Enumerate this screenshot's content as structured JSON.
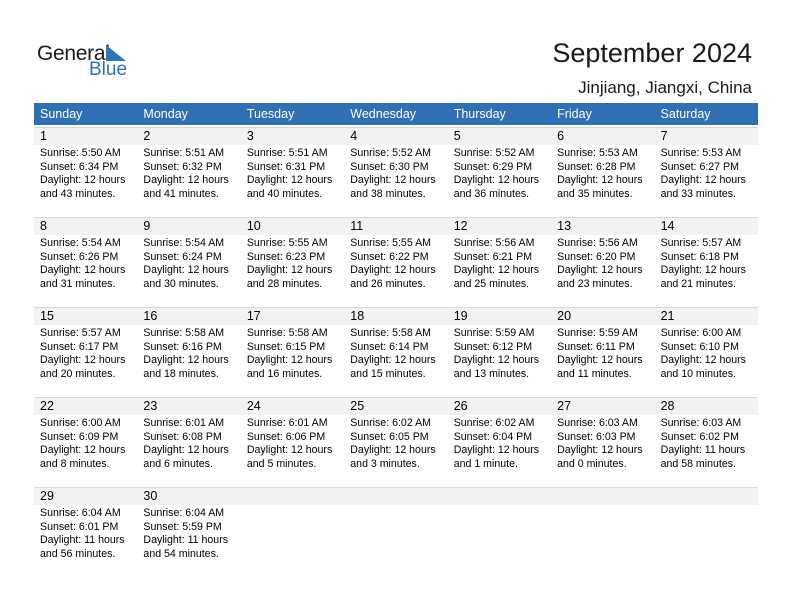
{
  "logo": {
    "text_general": "General",
    "text_blue": "Blue"
  },
  "header": {
    "title": "September 2024",
    "location": "Jinjiang, Jiangxi, China"
  },
  "colors": {
    "header_bg": "#2f6fb3",
    "band_bg": "#f2f2f2",
    "logo_blue": "#2a74b7"
  },
  "weekdays": [
    "Sunday",
    "Monday",
    "Tuesday",
    "Wednesday",
    "Thursday",
    "Friday",
    "Saturday"
  ],
  "weeks": [
    [
      {
        "day": "1",
        "sunrise": "Sunrise: 5:50 AM",
        "sunset": "Sunset: 6:34 PM",
        "daylight1": "Daylight: 12 hours",
        "daylight2": "and 43 minutes."
      },
      {
        "day": "2",
        "sunrise": "Sunrise: 5:51 AM",
        "sunset": "Sunset: 6:32 PM",
        "daylight1": "Daylight: 12 hours",
        "daylight2": "and 41 minutes."
      },
      {
        "day": "3",
        "sunrise": "Sunrise: 5:51 AM",
        "sunset": "Sunset: 6:31 PM",
        "daylight1": "Daylight: 12 hours",
        "daylight2": "and 40 minutes."
      },
      {
        "day": "4",
        "sunrise": "Sunrise: 5:52 AM",
        "sunset": "Sunset: 6:30 PM",
        "daylight1": "Daylight: 12 hours",
        "daylight2": "and 38 minutes."
      },
      {
        "day": "5",
        "sunrise": "Sunrise: 5:52 AM",
        "sunset": "Sunset: 6:29 PM",
        "daylight1": "Daylight: 12 hours",
        "daylight2": "and 36 minutes."
      },
      {
        "day": "6",
        "sunrise": "Sunrise: 5:53 AM",
        "sunset": "Sunset: 6:28 PM",
        "daylight1": "Daylight: 12 hours",
        "daylight2": "and 35 minutes."
      },
      {
        "day": "7",
        "sunrise": "Sunrise: 5:53 AM",
        "sunset": "Sunset: 6:27 PM",
        "daylight1": "Daylight: 12 hours",
        "daylight2": "and 33 minutes."
      }
    ],
    [
      {
        "day": "8",
        "sunrise": "Sunrise: 5:54 AM",
        "sunset": "Sunset: 6:26 PM",
        "daylight1": "Daylight: 12 hours",
        "daylight2": "and 31 minutes."
      },
      {
        "day": "9",
        "sunrise": "Sunrise: 5:54 AM",
        "sunset": "Sunset: 6:24 PM",
        "daylight1": "Daylight: 12 hours",
        "daylight2": "and 30 minutes."
      },
      {
        "day": "10",
        "sunrise": "Sunrise: 5:55 AM",
        "sunset": "Sunset: 6:23 PM",
        "daylight1": "Daylight: 12 hours",
        "daylight2": "and 28 minutes."
      },
      {
        "day": "11",
        "sunrise": "Sunrise: 5:55 AM",
        "sunset": "Sunset: 6:22 PM",
        "daylight1": "Daylight: 12 hours",
        "daylight2": "and 26 minutes."
      },
      {
        "day": "12",
        "sunrise": "Sunrise: 5:56 AM",
        "sunset": "Sunset: 6:21 PM",
        "daylight1": "Daylight: 12 hours",
        "daylight2": "and 25 minutes."
      },
      {
        "day": "13",
        "sunrise": "Sunrise: 5:56 AM",
        "sunset": "Sunset: 6:20 PM",
        "daylight1": "Daylight: 12 hours",
        "daylight2": "and 23 minutes."
      },
      {
        "day": "14",
        "sunrise": "Sunrise: 5:57 AM",
        "sunset": "Sunset: 6:18 PM",
        "daylight1": "Daylight: 12 hours",
        "daylight2": "and 21 minutes."
      }
    ],
    [
      {
        "day": "15",
        "sunrise": "Sunrise: 5:57 AM",
        "sunset": "Sunset: 6:17 PM",
        "daylight1": "Daylight: 12 hours",
        "daylight2": "and 20 minutes."
      },
      {
        "day": "16",
        "sunrise": "Sunrise: 5:58 AM",
        "sunset": "Sunset: 6:16 PM",
        "daylight1": "Daylight: 12 hours",
        "daylight2": "and 18 minutes."
      },
      {
        "day": "17",
        "sunrise": "Sunrise: 5:58 AM",
        "sunset": "Sunset: 6:15 PM",
        "daylight1": "Daylight: 12 hours",
        "daylight2": "and 16 minutes."
      },
      {
        "day": "18",
        "sunrise": "Sunrise: 5:58 AM",
        "sunset": "Sunset: 6:14 PM",
        "daylight1": "Daylight: 12 hours",
        "daylight2": "and 15 minutes."
      },
      {
        "day": "19",
        "sunrise": "Sunrise: 5:59 AM",
        "sunset": "Sunset: 6:12 PM",
        "daylight1": "Daylight: 12 hours",
        "daylight2": "and 13 minutes."
      },
      {
        "day": "20",
        "sunrise": "Sunrise: 5:59 AM",
        "sunset": "Sunset: 6:11 PM",
        "daylight1": "Daylight: 12 hours",
        "daylight2": "and 11 minutes."
      },
      {
        "day": "21",
        "sunrise": "Sunrise: 6:00 AM",
        "sunset": "Sunset: 6:10 PM",
        "daylight1": "Daylight: 12 hours",
        "daylight2": "and 10 minutes."
      }
    ],
    [
      {
        "day": "22",
        "sunrise": "Sunrise: 6:00 AM",
        "sunset": "Sunset: 6:09 PM",
        "daylight1": "Daylight: 12 hours",
        "daylight2": "and 8 minutes."
      },
      {
        "day": "23",
        "sunrise": "Sunrise: 6:01 AM",
        "sunset": "Sunset: 6:08 PM",
        "daylight1": "Daylight: 12 hours",
        "daylight2": "and 6 minutes."
      },
      {
        "day": "24",
        "sunrise": "Sunrise: 6:01 AM",
        "sunset": "Sunset: 6:06 PM",
        "daylight1": "Daylight: 12 hours",
        "daylight2": "and 5 minutes."
      },
      {
        "day": "25",
        "sunrise": "Sunrise: 6:02 AM",
        "sunset": "Sunset: 6:05 PM",
        "daylight1": "Daylight: 12 hours",
        "daylight2": "and 3 minutes."
      },
      {
        "day": "26",
        "sunrise": "Sunrise: 6:02 AM",
        "sunset": "Sunset: 6:04 PM",
        "daylight1": "Daylight: 12 hours",
        "daylight2": "and 1 minute."
      },
      {
        "day": "27",
        "sunrise": "Sunrise: 6:03 AM",
        "sunset": "Sunset: 6:03 PM",
        "daylight1": "Daylight: 12 hours",
        "daylight2": "and 0 minutes."
      },
      {
        "day": "28",
        "sunrise": "Sunrise: 6:03 AM",
        "sunset": "Sunset: 6:02 PM",
        "daylight1": "Daylight: 11 hours",
        "daylight2": "and 58 minutes."
      }
    ],
    [
      {
        "day": "29",
        "sunrise": "Sunrise: 6:04 AM",
        "sunset": "Sunset: 6:01 PM",
        "daylight1": "Daylight: 11 hours",
        "daylight2": "and 56 minutes."
      },
      {
        "day": "30",
        "sunrise": "Sunrise: 6:04 AM",
        "sunset": "Sunset: 5:59 PM",
        "daylight1": "Daylight: 11 hours",
        "daylight2": "and 54 minutes."
      }
    ]
  ]
}
